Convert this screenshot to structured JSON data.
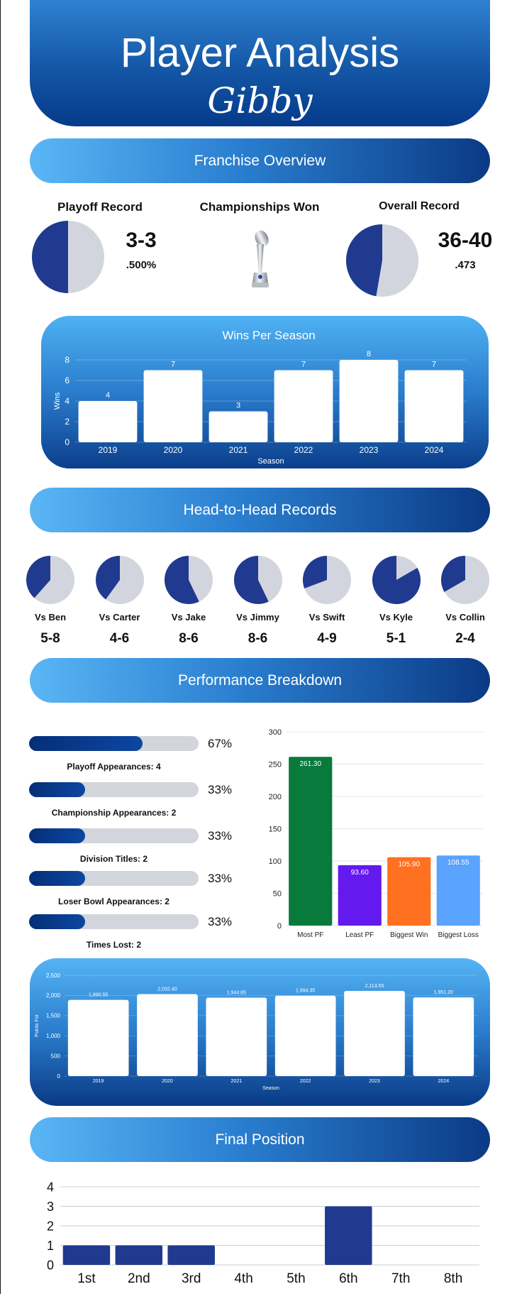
{
  "header": {
    "title": "Player Analysis",
    "player": "Gibby"
  },
  "sections": {
    "franchise": "Franchise Overview",
    "h2h": "Head-to-Head Records",
    "performance": "Performance Breakdown",
    "final": "Final Position"
  },
  "overview": {
    "playoff_label": "Playoff Record",
    "playoff_record": "3-3",
    "playoff_pct": ".500%",
    "playoff_win_fraction": 0.5,
    "championships_label": "Championships Won",
    "overall_label": "Overall Record",
    "overall_record": "36-40",
    "overall_pct": ".473",
    "overall_win_fraction": 0.473,
    "colors": {
      "win": "#1f3a8f",
      "loss": "#d3d5de"
    }
  },
  "h2h": [
    {
      "label": "Vs Ben",
      "record": "5-8",
      "wins": 5,
      "losses": 8
    },
    {
      "label": "Vs Carter",
      "record": "4-6",
      "wins": 4,
      "losses": 6
    },
    {
      "label": "Vs Jake",
      "record": "8-6",
      "wins": 8,
      "losses": 6
    },
    {
      "label": "Vs Jimmy",
      "record": "8-6",
      "wins": 8,
      "losses": 6
    },
    {
      "label": "Vs Swift",
      "record": "4-9",
      "wins": 4,
      "losses": 9
    },
    {
      "label": "Vs Kyle",
      "record": "5-1",
      "wins": 5,
      "losses": 1
    },
    {
      "label": "Vs Collin",
      "record": "2-4",
      "wins": 2,
      "losses": 4
    }
  ],
  "progress": [
    {
      "label": "Playoff Appearances: 4",
      "pct_label": "67%",
      "fraction": 0.67
    },
    {
      "label": "Championship Appearances: 2",
      "pct_label": "33%",
      "fraction": 0.33
    },
    {
      "label": "Division Titles: 2",
      "pct_label": "33%",
      "fraction": 0.33
    },
    {
      "label": "Loser Bowl Appearances: 2",
      "pct_label": "33%",
      "fraction": 0.33
    },
    {
      "label": "Times Lost: 2",
      "pct_label": "33%",
      "fraction": 0.33
    }
  ],
  "chart_data": [
    {
      "type": "bar",
      "title": "Wins Per Season",
      "xlabel": "Season",
      "ylabel": "Wins",
      "categories": [
        "2019",
        "2020",
        "2021",
        "2022",
        "2023",
        "2024"
      ],
      "values": [
        4,
        7,
        3,
        7,
        8,
        7
      ],
      "value_labels": [
        "4",
        "7",
        "3",
        "7",
        "8",
        "7"
      ],
      "yticks": [
        "0",
        "2",
        "4",
        "6",
        "8"
      ],
      "ylim": [
        0,
        8
      ],
      "bar_color": "#ffffff"
    },
    {
      "type": "bar",
      "title": "",
      "xlabel": "",
      "ylabel": "",
      "categories": [
        "Most PF",
        "Least PF",
        "Biggest Win",
        "Biggest Loss"
      ],
      "values": [
        261.3,
        93.6,
        105.9,
        108.55
      ],
      "value_labels": [
        "261.30",
        "93.60",
        "105.90",
        "108.55"
      ],
      "colors": [
        "#087a3c",
        "#6419ee",
        "#ff7020",
        "#5aa3ff"
      ],
      "yticks": [
        "0",
        "50",
        "100",
        "150",
        "200",
        "250",
        "300"
      ],
      "ylim": [
        0,
        300
      ]
    },
    {
      "type": "bar",
      "title": "",
      "xlabel": "Season",
      "ylabel": "Points For",
      "categories": [
        "2019",
        "2020",
        "2021",
        "2022",
        "2023",
        "2024"
      ],
      "values": [
        1890.55,
        2032.4,
        1944.85,
        1994.35,
        2113.55,
        1951.2
      ],
      "value_labels": [
        "1,890.55",
        "2,032.40",
        "1,944.85",
        "1,994.35",
        "2,113.55",
        "1,951.20"
      ],
      "yticks": [
        "0",
        "500",
        "1,000",
        "1,500",
        "2,000",
        "2,500"
      ],
      "ylim": [
        0,
        2500
      ],
      "bar_color": "#ffffff"
    },
    {
      "type": "bar",
      "title": "",
      "xlabel": "",
      "ylabel": "",
      "categories": [
        "1st",
        "2nd",
        "3rd",
        "4th",
        "5th",
        "6th",
        "7th",
        "8th"
      ],
      "values": [
        1,
        1,
        1,
        0,
        0,
        3,
        0,
        0
      ],
      "yticks": [
        "0",
        "1",
        "2",
        "3",
        "4"
      ],
      "ylim": [
        0,
        4
      ],
      "bar_color": "#1f3a8f"
    }
  ]
}
